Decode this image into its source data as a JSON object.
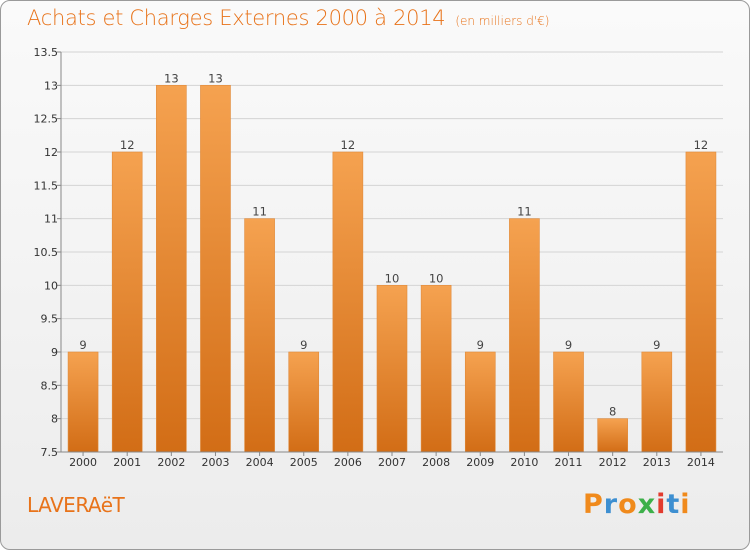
{
  "header": {
    "title": "Achats et Charges Externes 2000 à 2014",
    "unit": "(en milliers d'€)"
  },
  "footer": {
    "commune": "LAVERAëT",
    "logo": "Proxiti"
  },
  "colors": {
    "title": "#e8731a",
    "bar_light": "#f5a250",
    "bar_dark": "#d26d16",
    "logo_letters": [
      "#f08a1c",
      "#3d8fd1",
      "#f08a1c",
      "#3db04a",
      "#e23b2e",
      "#3d8fd1",
      "#f08a1c"
    ]
  },
  "chart_data": {
    "type": "bar",
    "title": "Achats et Charges Externes 2000 à 2014",
    "subtitle": "(en milliers d'€)",
    "xlabel": "",
    "ylabel": "",
    "categories": [
      "2000",
      "2001",
      "2002",
      "2003",
      "2004",
      "2005",
      "2006",
      "2007",
      "2008",
      "2009",
      "2010",
      "2011",
      "2012",
      "2013",
      "2014"
    ],
    "values": [
      9,
      12,
      13,
      13,
      11,
      9,
      12,
      10,
      10,
      9,
      11,
      9,
      8,
      9,
      12
    ],
    "ylim": [
      7.5,
      13.5
    ],
    "yticks": [
      "7.5",
      "8",
      "8.5",
      "9",
      "9.5",
      "10",
      "10.5",
      "11",
      "11.5",
      "12",
      "12.5",
      "13",
      "13.5"
    ],
    "grid": true,
    "data_labels": true
  }
}
